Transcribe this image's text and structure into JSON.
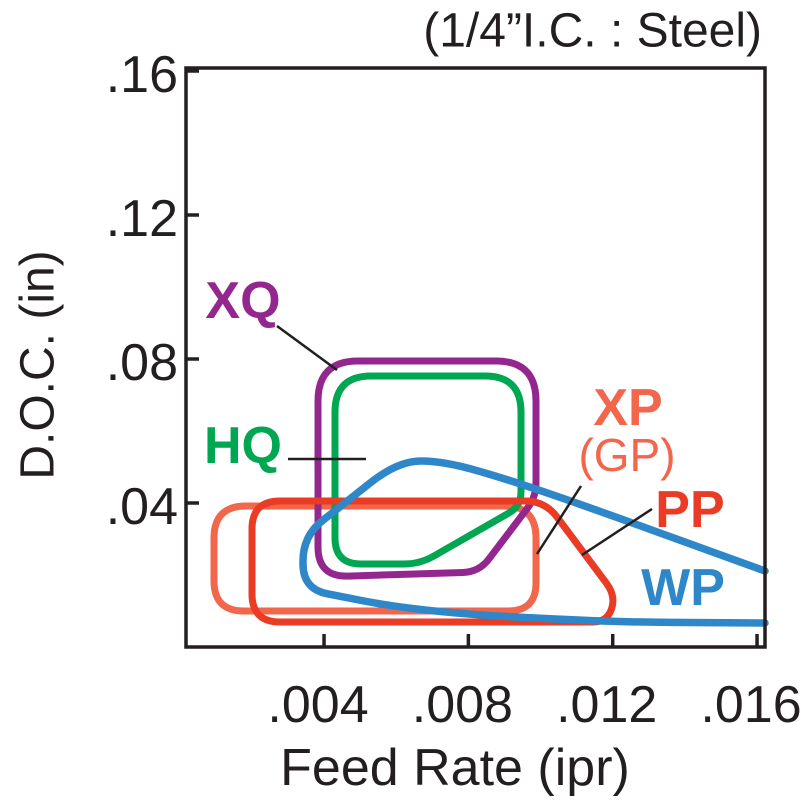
{
  "page": {
    "background": "#ffffff",
    "text_color": "#231f20"
  },
  "chart_data": {
    "type": "area",
    "title": "(1/4”I.C. : Steel)",
    "xlabel": "Feed Rate (ipr)",
    "ylabel": "D.O.C. (in)",
    "grid": false,
    "legend_position": "inline-labels",
    "xlim": [
      0.0001746,
      0.0162205
    ],
    "ylim": [
      0.0,
      0.1608333
    ],
    "x_ticks": {
      "values": [
        0.004,
        0.008,
        0.012,
        0.016
      ],
      "labels": [
        ".004",
        ".008",
        ".012",
        ".016"
      ]
    },
    "y_ticks": {
      "values": [
        0.04,
        0.08,
        0.12,
        0.16
      ],
      "labels": [
        ".04",
        ".08",
        ".12",
        ".16"
      ]
    },
    "series": [
      {
        "name": "XP (GP)",
        "label": {
          "text": "XP",
          "x": 0.012424,
          "y": 0.066389,
          "bold": true,
          "font_px": 52
        },
        "sublabel": {
          "text": "(GP)",
          "x": 0.012396,
          "y": 0.053333,
          "bold": false,
          "font_px": 46
        },
        "color": "#f2664b",
        "stroke_px": 7,
        "closed": true,
        "points": [
          [
            0.000951,
            0.01
          ],
          [
            0.000951,
            0.039167
          ],
          [
            0.009874,
            0.039167
          ],
          [
            0.009874,
            0.01
          ]
        ],
        "corner_radius_px": [
          30,
          32,
          32,
          28
        ],
        "leader": {
          "x1": 0.011121,
          "y1": 0.044722,
          "x2": 0.009902,
          "y2": 0.025833
        }
      },
      {
        "name": "XQ",
        "label": {
          "text": "XQ",
          "x": 0.001754,
          "y": 0.096111,
          "bold": true,
          "font_px": 52
        },
        "color": "#93278f",
        "stroke_px": 7,
        "closed": true,
        "points": [
          [
            0.003833,
            0.019444
          ],
          [
            0.003833,
            0.079444
          ],
          [
            0.009874,
            0.079444
          ],
          [
            0.009874,
            0.041667
          ],
          [
            0.008294,
            0.020833
          ]
        ],
        "corner_radius_px": [
          30,
          40,
          40,
          14,
          16
        ],
        "leader": {
          "x1": 0.002696,
          "y1": 0.089167,
          "x2": 0.004359,
          "y2": 0.076944
        }
      },
      {
        "name": "HQ",
        "label": {
          "text": "HQ",
          "x": 0.001754,
          "y": 0.055833,
          "bold": true,
          "font_px": 52
        },
        "color": "#00a651",
        "stroke_px": 7,
        "closed": true,
        "points": [
          [
            0.004304,
            0.023056
          ],
          [
            0.004304,
            0.075278
          ],
          [
            0.009459,
            0.075278
          ],
          [
            0.009459,
            0.039167
          ],
          [
            0.006659,
            0.023056
          ]
        ],
        "corner_radius_px": [
          26,
          36,
          36,
          14,
          16
        ],
        "leader": {
          "x1": 0.003001,
          "y1": 0.052222,
          "x2": 0.005163,
          "y2": 0.052222
        }
      },
      {
        "name": "PP",
        "label": {
          "text": "PP",
          "x": 0.014142,
          "y": 0.038056,
          "bold": true,
          "font_px": 52
        },
        "color": "#ea3b24",
        "stroke_px": 7,
        "closed": true,
        "points": [
          [
            0.002004,
            0.006944
          ],
          [
            0.002004,
            0.040556
          ],
          [
            0.010124,
            0.040556
          ],
          [
            0.012092,
            0.014167
          ],
          [
            0.011842,
            0.006944
          ]
        ],
        "corner_radius_px": [
          28,
          28,
          20,
          16,
          14
        ],
        "leader": {
          "x1": 0.013089,
          "y1": 0.038333,
          "x2": 0.011149,
          "y2": 0.025556
        }
      },
      {
        "name": "WP",
        "label": {
          "text": "WP",
          "x": 0.013948,
          "y": 0.016389,
          "bold": true,
          "font_px": 52
        },
        "color": "#2e87c8",
        "stroke_px": 7.5,
        "closed": false,
        "points": [
          [
            0.016221,
            0.021111
          ],
          [
            0.009791,
            0.044444
          ],
          [
            0.007325,
            0.051667
          ],
          [
            0.00605,
            0.051667
          ],
          [
            0.003417,
            0.030833
          ],
          [
            0.003417,
            0.016111
          ],
          [
            0.006659,
            0.009722
          ],
          [
            0.011925,
            0.006944
          ],
          [
            0.016221,
            0.006667
          ]
        ],
        "corner_radius_px": [
          0,
          150,
          35,
          35,
          25,
          25,
          100,
          60,
          0
        ]
      }
    ]
  }
}
